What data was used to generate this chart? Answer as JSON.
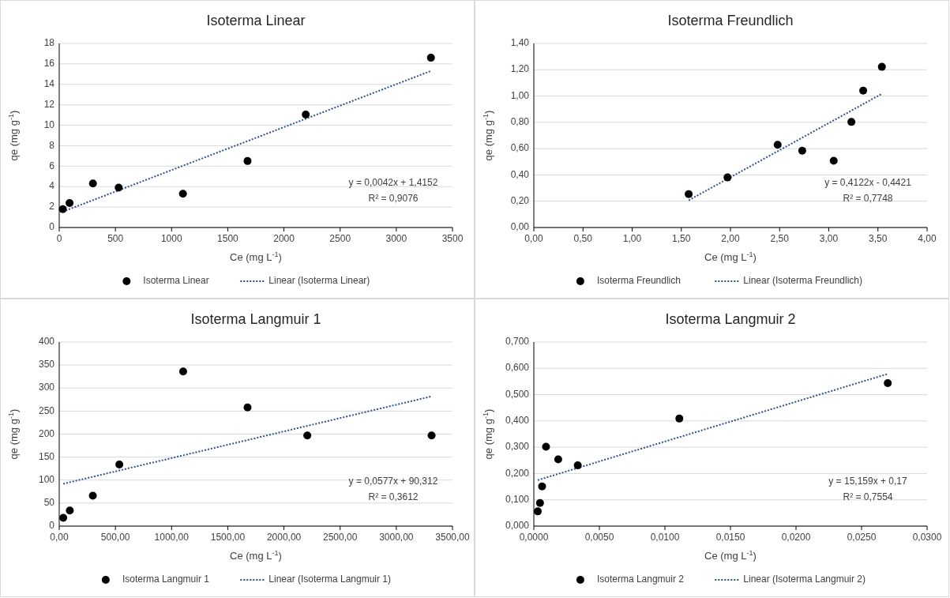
{
  "chart_data": [
    {
      "type": "scatter",
      "title": "Isoterma Linear",
      "xlabel": "Ce (mg L$^{-1}$)",
      "ylabel": "qe (mg g$^{-1}$)",
      "xlim": [
        0,
        3500
      ],
      "xticks": [
        0,
        500,
        1000,
        1500,
        2000,
        2500,
        3000,
        3500
      ],
      "ylim": [
        0,
        18
      ],
      "yticks": [
        0,
        2,
        4,
        6,
        8,
        10,
        12,
        14,
        16,
        18
      ],
      "grid": "y",
      "legend": "bottom",
      "annotations": [
        "y = 0,0042x + 1,4152",
        "R² = 0,9076"
      ],
      "series": [
        {
          "name": "Isoterma Linear",
          "color": "#000000",
          "marker": "circle",
          "x": [
            32,
            92,
            300,
            529,
            1101,
            1676,
            2194,
            3308
          ],
          "values": [
            1.8,
            2.4,
            4.3,
            3.9,
            3.3,
            6.5,
            11.05,
            16.6
          ]
        },
        {
          "name": "Linear (Isoterma Linear)",
          "type": "line",
          "line_style": "dotted",
          "color": "#2f4f8f",
          "x": [
            32,
            3308
          ],
          "values": [
            1.55,
            15.31
          ]
        }
      ]
    },
    {
      "type": "scatter",
      "title": "Isoterma Freundlich",
      "xlabel": "Ce (mg L$^{-1}$)",
      "ylabel": "qe (mg g$^{-1}$)",
      "xlim": [
        0,
        4
      ],
      "xticks": [
        {
          "value": 0,
          "label": "0,00"
        },
        {
          "value": 0.5,
          "label": "0,50"
        },
        {
          "value": 1,
          "label": "1,00"
        },
        {
          "value": 1.5,
          "label": "1,50"
        },
        {
          "value": 2,
          "label": "2,00"
        },
        {
          "value": 2.5,
          "label": "2,50"
        },
        {
          "value": 3,
          "label": "3,00"
        },
        {
          "value": 3.5,
          "label": "3,50"
        },
        {
          "value": 4,
          "label": "4,00"
        }
      ],
      "ylim": [
        0,
        1.4
      ],
      "yticks": [
        {
          "value": 0,
          "label": "0,00"
        },
        {
          "value": 0.2,
          "label": "0,20"
        },
        {
          "value": 0.4,
          "label": "0,40"
        },
        {
          "value": 0.6,
          "label": "0,60"
        },
        {
          "value": 0.8,
          "label": "0,80"
        },
        {
          "value": 1,
          "label": "1,00"
        },
        {
          "value": 1.2,
          "label": "1,20"
        },
        {
          "value": 1.4,
          "label": "1,40"
        }
      ],
      "grid": "y",
      "legend": "bottom",
      "annotations": [
        "y = 0,4122x - 0,4421",
        "R² = 0,7748"
      ],
      "series": [
        {
          "name": "Isoterma Freundlich",
          "color": "#000000",
          "marker": "circle",
          "x": [
            1.575,
            1.97,
            2.48,
            2.73,
            3.05,
            3.23,
            3.35,
            3.54
          ],
          "values": [
            0.254,
            0.381,
            0.629,
            0.584,
            0.508,
            0.803,
            1.041,
            1.222
          ]
        },
        {
          "name": "Linear (Isoterma Freundlich)",
          "type": "line",
          "line_style": "dotted",
          "color": "#2f4f8f",
          "x": [
            1.575,
            3.54
          ],
          "values": [
            0.207,
            1.017
          ]
        }
      ]
    },
    {
      "type": "scatter",
      "title": "Isoterma Langmuir 1",
      "xlabel": "Ce (mg L$^{-1}$)",
      "ylabel": "qe (mg g$^{-1}$)",
      "xlim": [
        0,
        3500
      ],
      "xticks": [
        {
          "value": 0,
          "label": "0,00"
        },
        {
          "value": 500,
          "label": "500,00"
        },
        {
          "value": 1000,
          "label": "1000,00"
        },
        {
          "value": 1500,
          "label": "1500,00"
        },
        {
          "value": 2000,
          "label": "2000,00"
        },
        {
          "value": 2500,
          "label": "2500,00"
        },
        {
          "value": 3000,
          "label": "3000,00"
        },
        {
          "value": 3500,
          "label": "3500,00"
        }
      ],
      "ylim": [
        0,
        400
      ],
      "yticks": [
        0,
        50,
        100,
        150,
        200,
        250,
        300,
        350,
        400
      ],
      "grid": "y",
      "legend": "bottom",
      "annotations": [
        "y = 0,0577x + 90,312",
        "R² = 0,3612"
      ],
      "series": [
        {
          "name": "Isoterma Langmuir 1",
          "color": "#000000",
          "marker": "circle",
          "x": [
            36,
            94,
            299,
            535,
            1103,
            1676,
            2208,
            3314
          ],
          "values": [
            18,
            34,
            66,
            134,
            336,
            258,
            197,
            197
          ]
        },
        {
          "name": "Linear (Isoterma Langmuir 1)",
          "type": "line",
          "line_style": "dotted",
          "color": "#2f4f8f",
          "x": [
            36,
            3314
          ],
          "values": [
            92,
            282
          ]
        }
      ]
    },
    {
      "type": "scatter",
      "title": "Isoterma Langmuir 2",
      "xlabel": "Ce (mg L$^{-1}$)",
      "ylabel": "qe (mg g$^{-1}$)",
      "xlim": [
        0,
        0.03
      ],
      "xticks": [
        {
          "value": 0,
          "label": "0,0000"
        },
        {
          "value": 0.005,
          "label": "0,0050"
        },
        {
          "value": 0.01,
          "label": "0,0100"
        },
        {
          "value": 0.015,
          "label": "0,0150"
        },
        {
          "value": 0.02,
          "label": "0,0200"
        },
        {
          "value": 0.025,
          "label": "0,0250"
        },
        {
          "value": 0.03,
          "label": "0,0300"
        }
      ],
      "ylim": [
        0,
        0.7
      ],
      "yticks": [
        {
          "value": 0,
          "label": "0,000"
        },
        {
          "value": 0.1,
          "label": "0,100"
        },
        {
          "value": 0.2,
          "label": "0,200"
        },
        {
          "value": 0.3,
          "label": "0,300"
        },
        {
          "value": 0.4,
          "label": "0,400"
        },
        {
          "value": 0.5,
          "label": "0,500"
        },
        {
          "value": 0.6,
          "label": "0,600"
        },
        {
          "value": 0.7,
          "label": "0,700"
        }
      ],
      "grid": "y",
      "legend": "bottom",
      "annotations": [
        "y = 15,159x + 0,17",
        "R² = 0,7554"
      ],
      "series": [
        {
          "name": "Isoterma Langmuir 2",
          "color": "#000000",
          "marker": "circle",
          "x": [
            0.0003,
            0.00047,
            0.00063,
            0.00093,
            0.00186,
            0.00335,
            0.0111,
            0.027
          ],
          "values": [
            0.056,
            0.088,
            0.151,
            0.302,
            0.254,
            0.231,
            0.409,
            0.544
          ]
        },
        {
          "name": "Linear (Isoterma Langmuir 2)",
          "type": "line",
          "line_style": "dotted",
          "color": "#2f4f8f",
          "x": [
            0.0003,
            0.027
          ],
          "values": [
            0.175,
            0.579
          ]
        }
      ]
    }
  ]
}
